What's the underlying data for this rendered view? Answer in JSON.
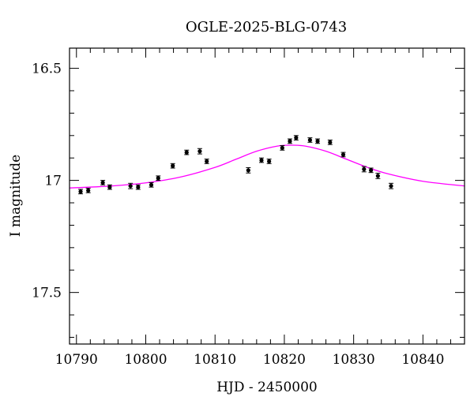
{
  "chart_data": {
    "type": "scatter",
    "title": "OGLE-2025-BLG-0743",
    "xlabel": "HJD - 2450000",
    "ylabel": "I magnitude",
    "xlim": [
      10789,
      10846
    ],
    "ylim": [
      17.73,
      16.41
    ],
    "y_inverted": true,
    "x_major_ticks": [
      10790,
      10800,
      10810,
      10820,
      10830,
      10840
    ],
    "x_tick_labels": [
      "10790",
      "10800",
      "10810",
      "10820",
      "10830",
      "10840"
    ],
    "x_minor_step": 2,
    "y_major_ticks": [
      16.5,
      17,
      17.5
    ],
    "y_tick_labels": [
      "16.5",
      "17",
      "17.5"
    ],
    "y_minor_step": 0.1,
    "grid": false,
    "colors": {
      "points": "#000000",
      "model": "#ff00ff"
    },
    "series": [
      {
        "type": "scatter",
        "x": [
          10790.6,
          10791.7,
          10793.8,
          10794.8,
          10797.8,
          10798.9,
          10800.8,
          10801.8,
          10803.9,
          10805.9,
          10807.8,
          10808.8,
          10814.8,
          10816.7,
          10817.8,
          10819.7,
          10820.8,
          10821.7,
          10823.7,
          10824.8,
          10826.6,
          10828.5,
          10831.5,
          10832.5,
          10833.5,
          10835.4
        ],
        "y": [
          17.05,
          17.045,
          17.01,
          17.03,
          17.025,
          17.03,
          17.02,
          16.99,
          16.935,
          16.875,
          16.87,
          16.915,
          16.955,
          16.91,
          16.915,
          16.855,
          16.825,
          16.81,
          16.82,
          16.825,
          16.83,
          16.885,
          16.95,
          16.955,
          16.98,
          17.025
        ],
        "err": [
          0.01,
          0.01,
          0.01,
          0.01,
          0.012,
          0.01,
          0.01,
          0.01,
          0.01,
          0.01,
          0.012,
          0.01,
          0.012,
          0.01,
          0.01,
          0.01,
          0.01,
          0.01,
          0.01,
          0.01,
          0.01,
          0.01,
          0.012,
          0.01,
          0.012,
          0.012
        ]
      },
      {
        "type": "line",
        "x": [
          10789,
          10795,
          10800,
          10805,
          10810,
          10813,
          10816,
          10819,
          10821,
          10823,
          10826,
          10829,
          10832,
          10835,
          10840,
          10846
        ],
        "y": [
          17.034,
          17.025,
          17.011,
          16.985,
          16.942,
          16.906,
          16.87,
          16.847,
          16.843,
          16.847,
          16.87,
          16.906,
          16.942,
          16.971,
          17.004,
          17.025
        ]
      }
    ]
  }
}
